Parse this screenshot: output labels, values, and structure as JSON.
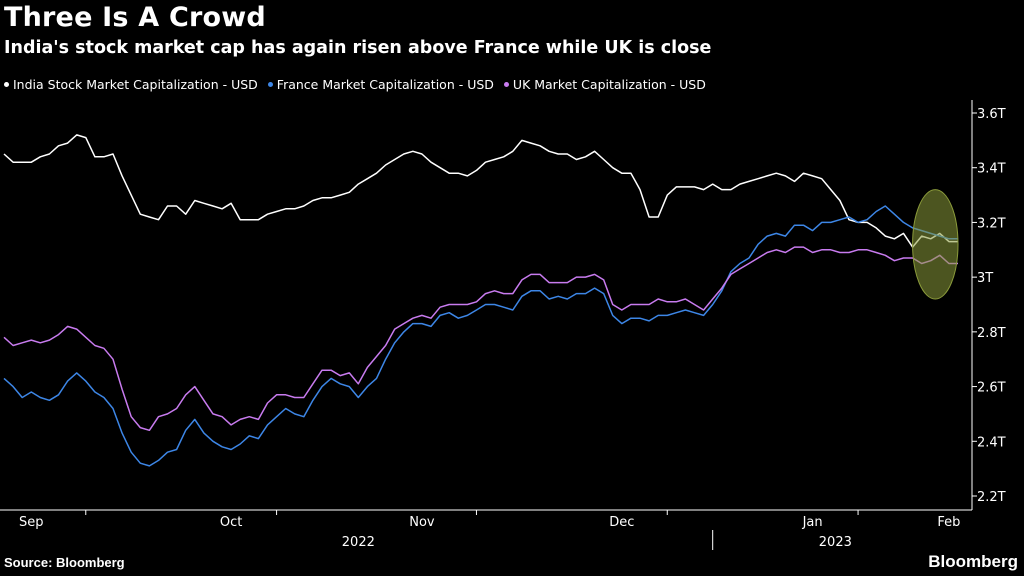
{
  "header": {
    "title": "Three Is A Crowd",
    "subtitle": "India's stock market cap has again risen above France while UK is close"
  },
  "footer": {
    "source": "Source: Bloomberg",
    "brand": "Bloomberg"
  },
  "chart_data": {
    "type": "line",
    "title": "Three Is A Crowd",
    "subtitle": "India's stock market cap has again risen above France while UK is close",
    "xlabel": "",
    "ylabel": "",
    "ylim": [
      2.2,
      3.6
    ],
    "y_unit": "T",
    "yticks": [
      {
        "value": 3.6,
        "label": "3.6T"
      },
      {
        "value": 3.4,
        "label": "3.4T"
      },
      {
        "value": 3.2,
        "label": "3.2T"
      },
      {
        "value": 3.0,
        "label": "3T"
      },
      {
        "value": 2.8,
        "label": "2.8T"
      },
      {
        "value": 2.6,
        "label": "2.6T"
      },
      {
        "value": 2.4,
        "label": "2.4T"
      },
      {
        "value": 2.2,
        "label": "2.2T"
      }
    ],
    "xlim": [
      0,
      105
    ],
    "x_unit": "trading days from Aug 29, 2022",
    "xticks": [
      {
        "value": 3,
        "label": "Sep"
      },
      {
        "value": 25,
        "label": "Oct"
      },
      {
        "value": 46,
        "label": "Nov"
      },
      {
        "value": 68,
        "label": "Dec"
      },
      {
        "value": 89,
        "label": "Jan"
      },
      {
        "value": 104,
        "label": "Feb"
      }
    ],
    "month_boundaries": [
      9,
      30,
      52,
      73,
      94
    ],
    "year_labels": [
      {
        "label": "2022",
        "x_start": 0,
        "x_end": 78
      },
      {
        "label": "2023",
        "x_start": 78,
        "x_end": 105
      }
    ],
    "year_divider": 78,
    "legend_position": "top-left",
    "annotation": {
      "type": "ellipse",
      "x_center": 102.5,
      "y_center": 3.12,
      "x_radius": 2.5,
      "y_radius": 0.2,
      "color": "#8a9a3a"
    },
    "series": [
      {
        "name": "India Stock Market Capitalization - USD",
        "color": "#ffffff",
        "values": [
          3.45,
          3.42,
          3.42,
          3.42,
          3.44,
          3.45,
          3.48,
          3.49,
          3.52,
          3.51,
          3.44,
          3.44,
          3.45,
          3.37,
          3.3,
          3.23,
          3.22,
          3.21,
          3.26,
          3.26,
          3.23,
          3.28,
          3.27,
          3.26,
          3.25,
          3.27,
          3.21,
          3.21,
          3.21,
          3.23,
          3.24,
          3.25,
          3.25,
          3.26,
          3.28,
          3.29,
          3.29,
          3.3,
          3.31,
          3.34,
          3.36,
          3.38,
          3.41,
          3.43,
          3.45,
          3.46,
          3.45,
          3.42,
          3.4,
          3.38,
          3.38,
          3.37,
          3.39,
          3.42,
          3.43,
          3.44,
          3.46,
          3.5,
          3.49,
          3.48,
          3.46,
          3.45,
          3.45,
          3.43,
          3.44,
          3.46,
          3.43,
          3.4,
          3.38,
          3.38,
          3.32,
          3.22,
          3.22,
          3.3,
          3.33,
          3.33,
          3.33,
          3.32,
          3.34,
          3.32,
          3.32,
          3.34,
          3.35,
          3.36,
          3.37,
          3.38,
          3.37,
          3.35,
          3.38,
          3.37,
          3.36,
          3.32,
          3.28,
          3.21,
          3.2,
          3.2,
          3.18,
          3.15,
          3.14,
          3.16,
          3.11,
          3.15,
          3.14,
          3.16,
          3.13,
          3.13
        ]
      },
      {
        "name": "France Market Capitalization - USD",
        "color": "#3d86e6",
        "values": [
          2.63,
          2.6,
          2.56,
          2.58,
          2.56,
          2.55,
          2.57,
          2.62,
          2.65,
          2.62,
          2.58,
          2.56,
          2.52,
          2.43,
          2.36,
          2.32,
          2.31,
          2.33,
          2.36,
          2.37,
          2.44,
          2.48,
          2.43,
          2.4,
          2.38,
          2.37,
          2.39,
          2.42,
          2.41,
          2.46,
          2.49,
          2.52,
          2.5,
          2.49,
          2.55,
          2.6,
          2.63,
          2.61,
          2.6,
          2.56,
          2.6,
          2.63,
          2.7,
          2.76,
          2.8,
          2.83,
          2.83,
          2.82,
          2.86,
          2.87,
          2.85,
          2.86,
          2.88,
          2.9,
          2.9,
          2.89,
          2.88,
          2.93,
          2.95,
          2.95,
          2.92,
          2.93,
          2.92,
          2.94,
          2.94,
          2.96,
          2.94,
          2.86,
          2.83,
          2.85,
          2.85,
          2.84,
          2.86,
          2.86,
          2.87,
          2.88,
          2.87,
          2.86,
          2.9,
          2.95,
          3.02,
          3.05,
          3.07,
          3.12,
          3.15,
          3.16,
          3.15,
          3.19,
          3.19,
          3.17,
          3.2,
          3.2,
          3.21,
          3.22,
          3.2,
          3.21,
          3.24,
          3.26,
          3.23,
          3.2,
          3.18,
          3.17,
          3.16,
          3.15,
          3.14,
          3.14
        ]
      },
      {
        "name": "UK Market Capitalization - USD",
        "color": "#c87bef",
        "values": [
          2.78,
          2.75,
          2.76,
          2.77,
          2.76,
          2.77,
          2.79,
          2.82,
          2.81,
          2.78,
          2.75,
          2.74,
          2.7,
          2.59,
          2.49,
          2.45,
          2.44,
          2.49,
          2.5,
          2.52,
          2.57,
          2.6,
          2.55,
          2.5,
          2.49,
          2.46,
          2.48,
          2.49,
          2.48,
          2.54,
          2.57,
          2.57,
          2.56,
          2.56,
          2.61,
          2.66,
          2.66,
          2.64,
          2.65,
          2.61,
          2.67,
          2.71,
          2.75,
          2.81,
          2.83,
          2.85,
          2.86,
          2.85,
          2.89,
          2.9,
          2.9,
          2.9,
          2.91,
          2.94,
          2.95,
          2.94,
          2.94,
          2.99,
          3.01,
          3.01,
          2.98,
          2.98,
          2.98,
          3.0,
          3.0,
          3.01,
          2.99,
          2.9,
          2.88,
          2.9,
          2.9,
          2.9,
          2.92,
          2.91,
          2.91,
          2.92,
          2.9,
          2.88,
          2.92,
          2.96,
          3.01,
          3.03,
          3.05,
          3.07,
          3.09,
          3.1,
          3.09,
          3.11,
          3.11,
          3.09,
          3.1,
          3.1,
          3.09,
          3.09,
          3.1,
          3.1,
          3.09,
          3.08,
          3.06,
          3.07,
          3.07,
          3.05,
          3.06,
          3.08,
          3.05,
          3.05
        ]
      }
    ]
  }
}
